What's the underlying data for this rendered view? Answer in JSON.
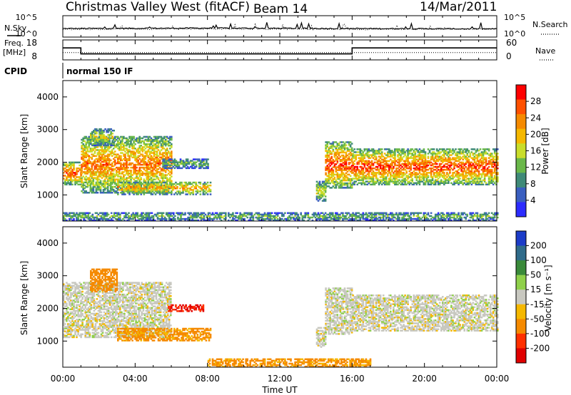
{
  "header": {
    "station": "Christmas Valley West (fitACF)",
    "beam": "Beam 14",
    "date": "14/Mar/2011"
  },
  "side_labels": {
    "nsky": "N.Sky",
    "nsearch": "N.Search",
    "freq_line1": "Freq.",
    "freq_line2": "[MHz]",
    "nave": "Nave",
    "cpid": "CPID",
    "cpid_value": "normal 150 IF"
  },
  "noise_axis": {
    "left_ticks": [
      "10^5",
      "10^0"
    ],
    "right_ticks": [
      "10^5",
      "10^0"
    ]
  },
  "freq_axis": {
    "left_ticks": [
      "18",
      "8"
    ],
    "right_ticks": [
      "60",
      "0"
    ]
  },
  "x_axis": {
    "label": "Time UT",
    "ticks": [
      "00:00",
      "04:00",
      "08:00",
      "12:00",
      "16:00",
      "20:00",
      "00:00"
    ],
    "hours": [
      0,
      4,
      8,
      12,
      16,
      20,
      24
    ]
  },
  "chart_data": [
    {
      "type": "line",
      "name": "noise",
      "series": [
        {
          "name": "N.Sky",
          "style": "solid",
          "level_log10": [
            2.0,
            2.1,
            2.0,
            1.9
          ]
        },
        {
          "name": "N.Search",
          "style": "dotted",
          "level_log10": [
            1.8,
            1.9,
            1.8,
            1.9
          ]
        }
      ],
      "x_hours": [
        0,
        8,
        16,
        24
      ],
      "ylim_log10": [
        0,
        5
      ]
    },
    {
      "type": "line",
      "name": "frequency",
      "series": [
        {
          "name": "Freq.",
          "style": "solid",
          "x_hours": [
            0,
            1.0,
            1.0,
            16.0,
            16.0,
            24
          ],
          "values": [
            14,
            14,
            11,
            11,
            14,
            14
          ]
        },
        {
          "name": "Nave",
          "style": "dotted",
          "x_hours": [
            0,
            24
          ],
          "values": [
            22,
            22
          ]
        }
      ],
      "ylim_left": [
        8,
        18
      ],
      "ylim_right": [
        0,
        60
      ]
    },
    {
      "type": "heatmap",
      "name": "power",
      "ylabel": "Slant Range [km]",
      "yticks": [
        1000,
        2000,
        3000,
        4000
      ],
      "ylim": [
        200,
        4500
      ],
      "xlim_hours": [
        0,
        24
      ],
      "colorbar": {
        "label": "Power [dB]",
        "ticks": [
          "4",
          "8",
          "12",
          "16",
          "20",
          "24",
          "28"
        ],
        "range": [
          0,
          30
        ]
      },
      "colors": [
        "#2c2cff",
        "#3a5fc0",
        "#3f8a78",
        "#6ab84a",
        "#c9dd2a",
        "#f5b800",
        "#f58a00",
        "#ff5000",
        "#ff0000"
      ],
      "regions": [
        {
          "t0": 0.0,
          "t1": 1.0,
          "r0": 1300,
          "r1": 2000,
          "p": 22
        },
        {
          "t0": 1.0,
          "t1": 6.0,
          "r0": 1050,
          "r1": 2800,
          "p": 20
        },
        {
          "t0": 1.5,
          "t1": 2.8,
          "r0": 2500,
          "r1": 3000,
          "p": 14
        },
        {
          "t0": 3.0,
          "t1": 8.2,
          "r0": 1000,
          "r1": 1400,
          "p": 18
        },
        {
          "t0": 5.5,
          "t1": 8.0,
          "r0": 1800,
          "r1": 2100,
          "p": 10
        },
        {
          "t0": 14.0,
          "t1": 14.5,
          "r0": 800,
          "r1": 1400,
          "p": 14
        },
        {
          "t0": 14.5,
          "t1": 16.0,
          "r0": 1200,
          "r1": 2600,
          "p": 22
        },
        {
          "t0": 16.0,
          "t1": 24.0,
          "r0": 1300,
          "r1": 2400,
          "p": 22
        },
        {
          "t0": 0.0,
          "t1": 24.0,
          "r0": 200,
          "r1": 450,
          "p": 10
        }
      ]
    },
    {
      "type": "heatmap",
      "name": "velocity",
      "ylabel": "Slant Range [km]",
      "yticks": [
        1000,
        2000,
        3000,
        4000
      ],
      "ylim": [
        200,
        4500
      ],
      "xlim_hours": [
        0,
        24
      ],
      "colorbar": {
        "label": "Velocity [m s⁻¹]",
        "ticks": [
          "200",
          "100",
          "50",
          "15",
          "-15",
          "-50",
          "-100",
          "-200"
        ],
        "range": [
          -250,
          250
        ]
      },
      "colors": [
        "#1c3cc8",
        "#2f6b8a",
        "#3a8a3a",
        "#8fd04a",
        "#c8c8c0",
        "#f5b800",
        "#f58a00",
        "#ff3000",
        "#e00000"
      ],
      "regions": [
        {
          "t0": 0.0,
          "t1": 6.0,
          "r0": 1100,
          "r1": 2800,
          "v": 0
        },
        {
          "t0": 1.5,
          "t1": 3.0,
          "r0": 2500,
          "r1": 3200,
          "v": -80
        },
        {
          "t0": 3.0,
          "t1": 8.2,
          "r0": 1000,
          "r1": 1400,
          "v": -60
        },
        {
          "t0": 5.8,
          "t1": 7.8,
          "r0": 1900,
          "r1": 2100,
          "v": -200
        },
        {
          "t0": 14.0,
          "t1": 14.5,
          "r0": 800,
          "r1": 1400,
          "v": 0
        },
        {
          "t0": 14.5,
          "t1": 16.0,
          "r0": 1200,
          "r1": 2600,
          "v": 0
        },
        {
          "t0": 16.0,
          "t1": 24.0,
          "r0": 1300,
          "r1": 2400,
          "v": 0
        },
        {
          "t0": 8.0,
          "t1": 17.0,
          "r0": 200,
          "r1": 450,
          "v": -60
        }
      ]
    }
  ]
}
